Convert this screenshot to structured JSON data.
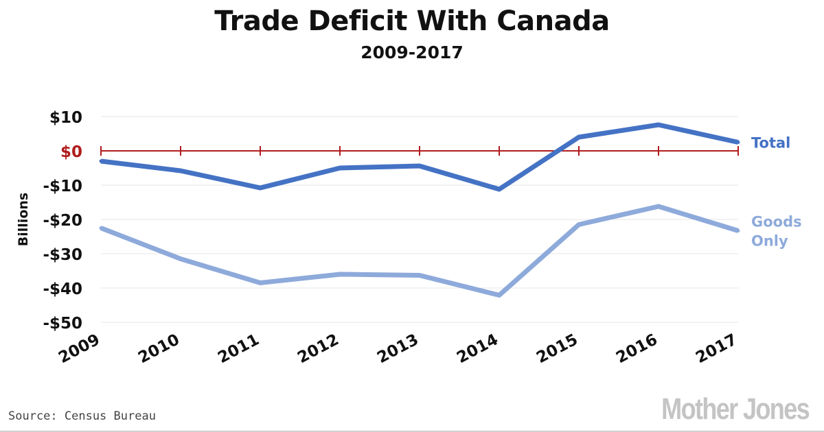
{
  "header": {
    "title": "Trade Deficit With Canada",
    "subtitle": "2009-2017"
  },
  "footer": {
    "source": "Source: Census Bureau",
    "brand": "Mother Jones"
  },
  "chart_data": {
    "type": "line",
    "title": "Trade Deficit With Canada",
    "subtitle": "2009-2017",
    "ylabel": "Billions",
    "xlabel": "",
    "x": [
      "2009",
      "2010",
      "2011",
      "2012",
      "2013",
      "2014",
      "2015",
      "2016",
      "2017"
    ],
    "ylim": [
      -50,
      10
    ],
    "yticks": [
      {
        "value": 10,
        "label": "$10"
      },
      {
        "value": 0,
        "label": "$0"
      },
      {
        "value": -10,
        "label": "-$10"
      },
      {
        "value": -20,
        "label": "-$20"
      },
      {
        "value": -30,
        "label": "-$30"
      },
      {
        "value": -40,
        "label": "-$40"
      },
      {
        "value": -50,
        "label": "-$50"
      }
    ],
    "grid": true,
    "zero_line_color": "#b01c1c",
    "series": [
      {
        "name": "Total",
        "label_lines": [
          "Total"
        ],
        "color": "#4472c4",
        "values": [
          -3,
          -5.8,
          -10.8,
          -5,
          -4.4,
          -11.2,
          4,
          7.6,
          2.5
        ]
      },
      {
        "name": "Goods Only",
        "label_lines": [
          "Goods",
          "Only"
        ],
        "color": "#8eaadb",
        "values": [
          -22.5,
          -31.5,
          -38.5,
          -36,
          -36.3,
          -42.1,
          -21.5,
          -16.2,
          -23.3
        ]
      }
    ]
  }
}
